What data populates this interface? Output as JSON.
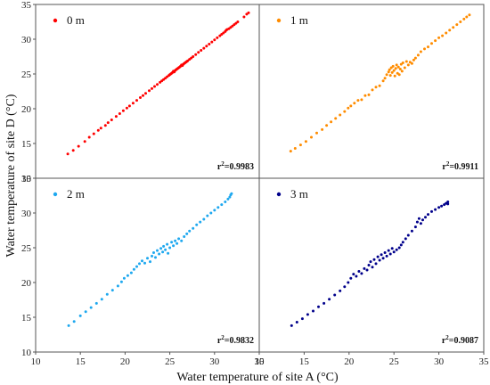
{
  "chart_data": {
    "type": "scatter",
    "xlabel": "Water temperature of site A (°C)",
    "ylabel": "Water temperature of site D (°C)",
    "xlim": [
      10,
      35
    ],
    "ylim": [
      10,
      35
    ],
    "xticks": [
      10,
      15,
      20,
      25,
      30,
      35
    ],
    "yticks": [
      10,
      15,
      20,
      25,
      30,
      35
    ],
    "panels": [
      {
        "legend": "0 m",
        "r2_prefix": "r",
        "r2_sup": "2",
        "r2_value": "=0.9983",
        "color": "#ff0000",
        "points": [
          [
            13.6,
            13.5
          ],
          [
            14.2,
            14.0
          ],
          [
            14.8,
            14.6
          ],
          [
            15.5,
            15.3
          ],
          [
            16.0,
            15.9
          ],
          [
            16.5,
            16.4
          ],
          [
            17.0,
            16.9
          ],
          [
            17.3,
            17.2
          ],
          [
            17.8,
            17.6
          ],
          [
            18.1,
            18.0
          ],
          [
            18.5,
            18.4
          ],
          [
            19.0,
            18.9
          ],
          [
            19.4,
            19.3
          ],
          [
            19.8,
            19.7
          ],
          [
            20.2,
            20.1
          ],
          [
            20.5,
            20.4
          ],
          [
            20.9,
            20.8
          ],
          [
            21.3,
            21.2
          ],
          [
            21.7,
            21.6
          ],
          [
            22.0,
            21.9
          ],
          [
            22.3,
            22.2
          ],
          [
            22.7,
            22.6
          ],
          [
            23.0,
            22.9
          ],
          [
            23.3,
            23.2
          ],
          [
            23.6,
            23.5
          ],
          [
            23.9,
            23.8
          ],
          [
            24.1,
            24.0
          ],
          [
            24.3,
            24.2
          ],
          [
            24.5,
            24.4
          ],
          [
            24.7,
            24.6
          ],
          [
            24.9,
            24.8
          ],
          [
            25.0,
            24.9
          ],
          [
            25.1,
            25.0
          ],
          [
            25.2,
            25.1
          ],
          [
            25.3,
            25.2
          ],
          [
            25.4,
            25.4
          ],
          [
            25.5,
            25.3
          ],
          [
            25.6,
            25.5
          ],
          [
            25.7,
            25.6
          ],
          [
            25.8,
            25.7
          ],
          [
            25.9,
            25.8
          ],
          [
            26.0,
            25.9
          ],
          [
            26.1,
            26.0
          ],
          [
            26.2,
            26.1
          ],
          [
            26.3,
            26.3
          ],
          [
            26.4,
            26.2
          ],
          [
            26.5,
            26.4
          ],
          [
            26.6,
            26.5
          ],
          [
            26.7,
            26.6
          ],
          [
            26.8,
            26.7
          ],
          [
            26.9,
            26.8
          ],
          [
            27.0,
            26.9
          ],
          [
            27.2,
            27.1
          ],
          [
            27.4,
            27.3
          ],
          [
            27.6,
            27.5
          ],
          [
            27.9,
            27.8
          ],
          [
            28.2,
            28.1
          ],
          [
            28.5,
            28.4
          ],
          [
            28.8,
            28.7
          ],
          [
            29.1,
            29.0
          ],
          [
            29.4,
            29.3
          ],
          [
            29.7,
            29.6
          ],
          [
            30.0,
            29.9
          ],
          [
            30.3,
            30.2
          ],
          [
            30.6,
            30.5
          ],
          [
            30.8,
            30.7
          ],
          [
            31.0,
            30.9
          ],
          [
            31.2,
            31.1
          ],
          [
            31.3,
            31.3
          ],
          [
            31.4,
            31.4
          ],
          [
            31.6,
            31.5
          ],
          [
            31.8,
            31.7
          ],
          [
            32.0,
            31.9
          ],
          [
            32.2,
            32.1
          ],
          [
            32.4,
            32.3
          ],
          [
            32.6,
            32.5
          ],
          [
            33.3,
            33.2
          ],
          [
            33.6,
            33.6
          ],
          [
            33.8,
            33.8
          ]
        ]
      },
      {
        "legend": "1 m",
        "r2_prefix": "r",
        "r2_sup": "2",
        "r2_value": "=0.9911",
        "color": "#ff8c00",
        "points": [
          [
            13.5,
            13.9
          ],
          [
            14.0,
            14.3
          ],
          [
            14.6,
            14.8
          ],
          [
            15.2,
            15.3
          ],
          [
            15.8,
            15.9
          ],
          [
            16.4,
            16.5
          ],
          [
            17.0,
            17.0
          ],
          [
            17.5,
            17.6
          ],
          [
            18.0,
            18.1
          ],
          [
            18.5,
            18.6
          ],
          [
            19.0,
            19.1
          ],
          [
            19.5,
            19.6
          ],
          [
            19.9,
            20.1
          ],
          [
            20.2,
            20.4
          ],
          [
            20.6,
            20.8
          ],
          [
            21.0,
            21.2
          ],
          [
            21.4,
            21.3
          ],
          [
            21.8,
            21.9
          ],
          [
            22.2,
            22.0
          ],
          [
            22.6,
            22.7
          ],
          [
            23.0,
            23.1
          ],
          [
            23.4,
            23.3
          ],
          [
            23.8,
            24.0
          ],
          [
            24.0,
            24.4
          ],
          [
            24.2,
            24.9
          ],
          [
            24.4,
            25.3
          ],
          [
            24.5,
            25.6
          ],
          [
            24.6,
            24.8
          ],
          [
            24.7,
            25.9
          ],
          [
            24.8,
            25.2
          ],
          [
            24.9,
            26.1
          ],
          [
            25.0,
            25.5
          ],
          [
            25.1,
            24.7
          ],
          [
            25.2,
            25.8
          ],
          [
            25.3,
            26.3
          ],
          [
            25.4,
            25.1
          ],
          [
            25.5,
            26.0
          ],
          [
            25.6,
            24.9
          ],
          [
            25.7,
            25.7
          ],
          [
            25.8,
            26.4
          ],
          [
            25.9,
            25.4
          ],
          [
            26.0,
            26.6
          ],
          [
            26.2,
            25.9
          ],
          [
            26.4,
            26.8
          ],
          [
            26.6,
            26.3
          ],
          [
            26.8,
            26.7
          ],
          [
            27.0,
            26.5
          ],
          [
            27.2,
            27.0
          ],
          [
            27.4,
            27.3
          ],
          [
            27.7,
            27.7
          ],
          [
            28.0,
            28.2
          ],
          [
            28.4,
            28.6
          ],
          [
            28.8,
            28.9
          ],
          [
            29.2,
            29.4
          ],
          [
            29.6,
            29.8
          ],
          [
            30.0,
            30.2
          ],
          [
            30.4,
            30.5
          ],
          [
            30.8,
            30.9
          ],
          [
            31.2,
            31.3
          ],
          [
            31.6,
            31.7
          ],
          [
            32.0,
            32.1
          ],
          [
            32.4,
            32.5
          ],
          [
            32.8,
            32.9
          ],
          [
            33.1,
            33.2
          ],
          [
            33.4,
            33.5
          ]
        ]
      },
      {
        "legend": "2 m",
        "r2_prefix": "r",
        "r2_sup": "2",
        "r2_value": "=0.9832",
        "color": "#1ea8ef",
        "points": [
          [
            13.7,
            13.8
          ],
          [
            14.3,
            14.4
          ],
          [
            15.0,
            15.2
          ],
          [
            15.6,
            15.8
          ],
          [
            16.2,
            16.4
          ],
          [
            16.8,
            17.0
          ],
          [
            17.4,
            17.6
          ],
          [
            18.0,
            18.3
          ],
          [
            18.6,
            18.9
          ],
          [
            19.2,
            19.5
          ],
          [
            19.6,
            20.1
          ],
          [
            19.9,
            20.6
          ],
          [
            20.3,
            21.0
          ],
          [
            20.7,
            21.4
          ],
          [
            21.0,
            21.9
          ],
          [
            21.3,
            22.3
          ],
          [
            21.6,
            22.7
          ],
          [
            21.9,
            23.1
          ],
          [
            22.2,
            22.8
          ],
          [
            22.5,
            23.5
          ],
          [
            22.8,
            23.0
          ],
          [
            23.0,
            23.8
          ],
          [
            23.2,
            24.3
          ],
          [
            23.4,
            23.6
          ],
          [
            23.6,
            24.6
          ],
          [
            23.8,
            24.1
          ],
          [
            24.0,
            24.9
          ],
          [
            24.2,
            24.4
          ],
          [
            24.3,
            25.2
          ],
          [
            24.5,
            24.7
          ],
          [
            24.7,
            25.5
          ],
          [
            24.8,
            24.2
          ],
          [
            25.0,
            25.0
          ],
          [
            25.2,
            25.8
          ],
          [
            25.4,
            25.3
          ],
          [
            25.6,
            26.0
          ],
          [
            25.8,
            25.6
          ],
          [
            26.0,
            26.3
          ],
          [
            26.3,
            26.0
          ],
          [
            26.6,
            26.6
          ],
          [
            26.9,
            27.0
          ],
          [
            27.2,
            27.4
          ],
          [
            27.6,
            27.8
          ],
          [
            28.0,
            28.3
          ],
          [
            28.4,
            28.7
          ],
          [
            28.8,
            29.1
          ],
          [
            29.2,
            29.6
          ],
          [
            29.6,
            30.0
          ],
          [
            30.0,
            30.4
          ],
          [
            30.4,
            30.8
          ],
          [
            30.8,
            31.2
          ],
          [
            31.2,
            31.6
          ],
          [
            31.5,
            32.0
          ],
          [
            31.7,
            32.3
          ],
          [
            31.8,
            32.6
          ],
          [
            31.9,
            32.8
          ]
        ]
      },
      {
        "legend": "3 m",
        "r2_prefix": "r",
        "r2_sup": "2",
        "r2_value": "=0.9087",
        "color": "#00008b",
        "points": [
          [
            13.6,
            13.8
          ],
          [
            14.2,
            14.3
          ],
          [
            14.8,
            14.8
          ],
          [
            15.4,
            15.4
          ],
          [
            16.0,
            15.9
          ],
          [
            16.6,
            16.5
          ],
          [
            17.2,
            17.0
          ],
          [
            17.8,
            17.6
          ],
          [
            18.4,
            18.2
          ],
          [
            19.0,
            18.8
          ],
          [
            19.5,
            19.4
          ],
          [
            19.9,
            20.0
          ],
          [
            20.2,
            20.6
          ],
          [
            20.5,
            21.2
          ],
          [
            20.8,
            20.9
          ],
          [
            21.1,
            21.6
          ],
          [
            21.4,
            21.3
          ],
          [
            21.7,
            22.0
          ],
          [
            22.0,
            21.8
          ],
          [
            22.2,
            22.5
          ],
          [
            22.4,
            23.0
          ],
          [
            22.6,
            22.2
          ],
          [
            22.8,
            23.3
          ],
          [
            23.0,
            22.7
          ],
          [
            23.2,
            23.7
          ],
          [
            23.4,
            23.2
          ],
          [
            23.6,
            24.0
          ],
          [
            23.8,
            23.5
          ],
          [
            24.0,
            24.3
          ],
          [
            24.2,
            23.8
          ],
          [
            24.4,
            24.6
          ],
          [
            24.6,
            24.1
          ],
          [
            24.8,
            24.9
          ],
          [
            25.0,
            24.4
          ],
          [
            25.3,
            24.7
          ],
          [
            25.6,
            25.0
          ],
          [
            25.8,
            25.4
          ],
          [
            26.0,
            25.8
          ],
          [
            26.3,
            26.3
          ],
          [
            26.6,
            26.8
          ],
          [
            27.0,
            27.4
          ],
          [
            27.4,
            28.0
          ],
          [
            27.6,
            28.7
          ],
          [
            27.8,
            29.2
          ],
          [
            28.0,
            28.5
          ],
          [
            28.2,
            29.0
          ],
          [
            28.5,
            29.4
          ],
          [
            28.8,
            29.8
          ],
          [
            29.2,
            30.2
          ],
          [
            29.6,
            30.5
          ],
          [
            30.0,
            30.8
          ],
          [
            30.3,
            31.0
          ],
          [
            30.6,
            31.2
          ],
          [
            30.8,
            31.4
          ],
          [
            31.0,
            31.6
          ],
          [
            31.0,
            31.3
          ]
        ]
      }
    ]
  }
}
